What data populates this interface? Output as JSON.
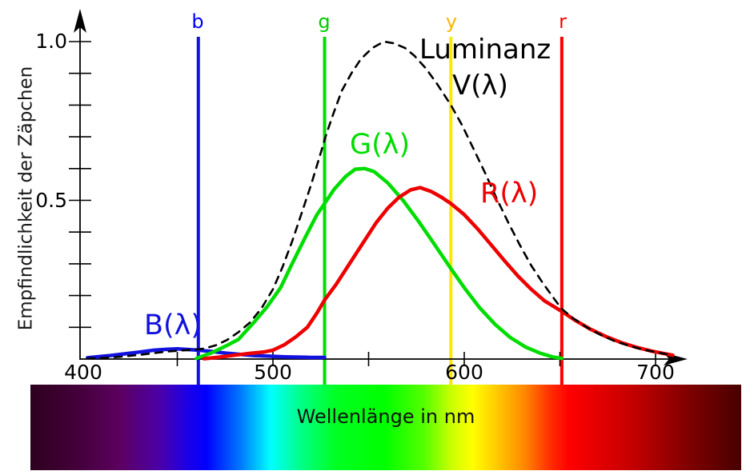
{
  "chart_data": {
    "type": "line",
    "title": "",
    "xlabel": "Wellenlänge in nm",
    "ylabel": "Empfindlichkeit der Zäpchen",
    "x_axis": {
      "unit": "nm",
      "min": 400,
      "max": 710,
      "minor_ticks": [
        450,
        500,
        550,
        600,
        650,
        700
      ],
      "tick_labels": [
        {
          "value": 400,
          "text": "400"
        },
        {
          "value": 500,
          "text": "500"
        },
        {
          "value": 600,
          "text": "600"
        },
        {
          "value": 700,
          "text": "700"
        }
      ]
    },
    "y_axis": {
      "min": 0,
      "max": 1.0,
      "tick_step": 0.1,
      "tick_labels": [
        {
          "value": 1.0,
          "text": "1.0"
        },
        {
          "value": 0.5,
          "text": "0.5"
        }
      ]
    },
    "grid": false,
    "series": [
      {
        "name": "blue-cone",
        "label": "B(λ)",
        "color": "#1212e0",
        "dashed": false,
        "peak_nm": 448,
        "peak_value": 0.032,
        "points": [
          [
            403,
            0.004
          ],
          [
            408,
            0.007
          ],
          [
            415,
            0.011
          ],
          [
            422,
            0.016
          ],
          [
            430,
            0.022
          ],
          [
            438,
            0.028
          ],
          [
            445,
            0.031
          ],
          [
            450,
            0.032
          ],
          [
            456,
            0.03
          ],
          [
            461,
            0.028
          ],
          [
            468,
            0.024
          ],
          [
            475,
            0.019
          ],
          [
            482,
            0.015
          ],
          [
            490,
            0.011
          ],
          [
            498,
            0.009
          ],
          [
            506,
            0.007
          ],
          [
            514,
            0.006
          ],
          [
            520,
            0.005
          ],
          [
            527,
            0.005
          ]
        ]
      },
      {
        "name": "green-cone",
        "label": "G(λ)",
        "color": "#00dd00",
        "dashed": false,
        "peak_nm": 543,
        "peak_value": 0.6,
        "points": [
          [
            460,
            0.002
          ],
          [
            468,
            0.02
          ],
          [
            475,
            0.04
          ],
          [
            482,
            0.062
          ],
          [
            490,
            0.115
          ],
          [
            497,
            0.165
          ],
          [
            504,
            0.225
          ],
          [
            510,
            0.3
          ],
          [
            517,
            0.385
          ],
          [
            523,
            0.455
          ],
          [
            527,
            0.49
          ],
          [
            532,
            0.535
          ],
          [
            538,
            0.575
          ],
          [
            543,
            0.598
          ],
          [
            548,
            0.6
          ],
          [
            553,
            0.59
          ],
          [
            560,
            0.555
          ],
          [
            568,
            0.5
          ],
          [
            576,
            0.435
          ],
          [
            584,
            0.365
          ],
          [
            593,
            0.285
          ],
          [
            600,
            0.225
          ],
          [
            608,
            0.162
          ],
          [
            616,
            0.11
          ],
          [
            624,
            0.068
          ],
          [
            632,
            0.038
          ],
          [
            640,
            0.018
          ],
          [
            646,
            0.007
          ],
          [
            651,
            0.002
          ]
        ]
      },
      {
        "name": "red-cone",
        "label": "R(λ)",
        "color": "#ee0000",
        "dashed": false,
        "peak_nm": 577,
        "peak_value": 0.54,
        "points": [
          [
            464,
            0.001
          ],
          [
            472,
            0.006
          ],
          [
            480,
            0.012
          ],
          [
            488,
            0.018
          ],
          [
            495,
            0.022
          ],
          [
            500,
            0.028
          ],
          [
            506,
            0.045
          ],
          [
            512,
            0.07
          ],
          [
            518,
            0.1
          ],
          [
            523,
            0.145
          ],
          [
            527,
            0.186
          ],
          [
            533,
            0.235
          ],
          [
            540,
            0.3
          ],
          [
            547,
            0.365
          ],
          [
            554,
            0.43
          ],
          [
            560,
            0.475
          ],
          [
            566,
            0.51
          ],
          [
            572,
            0.533
          ],
          [
            577,
            0.54
          ],
          [
            583,
            0.527
          ],
          [
            588,
            0.51
          ],
          [
            593,
            0.49
          ],
          [
            600,
            0.455
          ],
          [
            607,
            0.41
          ],
          [
            614,
            0.36
          ],
          [
            621,
            0.31
          ],
          [
            628,
            0.262
          ],
          [
            635,
            0.22
          ],
          [
            642,
            0.183
          ],
          [
            651,
            0.15
          ],
          [
            658,
            0.122
          ],
          [
            666,
            0.094
          ],
          [
            674,
            0.071
          ],
          [
            682,
            0.052
          ],
          [
            690,
            0.037
          ],
          [
            698,
            0.025
          ],
          [
            704,
            0.018
          ],
          [
            709,
            0.012
          ]
        ]
      },
      {
        "name": "luminance",
        "label_line1": "Luminanz",
        "label_line2": "V(λ)",
        "color": "#000000",
        "dashed": true,
        "peak_nm": 558,
        "peak_value": 1.0,
        "points": [
          [
            403,
            0.002
          ],
          [
            412,
            0.004
          ],
          [
            420,
            0.007
          ],
          [
            430,
            0.013
          ],
          [
            438,
            0.019
          ],
          [
            445,
            0.024
          ],
          [
            452,
            0.027
          ],
          [
            458,
            0.029
          ],
          [
            464,
            0.033
          ],
          [
            470,
            0.043
          ],
          [
            476,
            0.06
          ],
          [
            482,
            0.085
          ],
          [
            488,
            0.115
          ],
          [
            494,
            0.16
          ],
          [
            500,
            0.22
          ],
          [
            505,
            0.29
          ],
          [
            510,
            0.37
          ],
          [
            515,
            0.46
          ],
          [
            520,
            0.55
          ],
          [
            524,
            0.63
          ],
          [
            528,
            0.71
          ],
          [
            532,
            0.78
          ],
          [
            536,
            0.845
          ],
          [
            541,
            0.9
          ],
          [
            546,
            0.945
          ],
          [
            552,
            0.98
          ],
          [
            558,
            1.0
          ],
          [
            563,
            0.995
          ],
          [
            569,
            0.98
          ],
          [
            574,
            0.955
          ],
          [
            580,
            0.915
          ],
          [
            586,
            0.865
          ],
          [
            593,
            0.8
          ],
          [
            599,
            0.735
          ],
          [
            605,
            0.66
          ],
          [
            611,
            0.585
          ],
          [
            617,
            0.505
          ],
          [
            623,
            0.43
          ],
          [
            629,
            0.36
          ],
          [
            635,
            0.295
          ],
          [
            641,
            0.24
          ],
          [
            647,
            0.19
          ],
          [
            651,
            0.158
          ],
          [
            657,
            0.128
          ],
          [
            664,
            0.1
          ],
          [
            671,
            0.077
          ],
          [
            678,
            0.058
          ],
          [
            685,
            0.044
          ],
          [
            692,
            0.032
          ],
          [
            699,
            0.023
          ],
          [
            705,
            0.016
          ],
          [
            709,
            0.012
          ]
        ]
      }
    ],
    "markers": [
      {
        "label": "b",
        "wavelength_nm": 461,
        "color": "#1212e0",
        "label_color": "#0000ff"
      },
      {
        "label": "g",
        "wavelength_nm": 527,
        "color": "#00dd00",
        "label_color": "#00cc00"
      },
      {
        "label": "y",
        "wavelength_nm": 593,
        "color": "#ffe800",
        "label_color": "#ffb400"
      },
      {
        "label": "r",
        "wavelength_nm": 651,
        "color": "#ff0000",
        "label_color": "#ff0000"
      }
    ],
    "spectrum_bar": {
      "label": "Wellenlänge in nm",
      "stops": [
        {
          "pos": 0.0,
          "color": "#2e001e"
        },
        {
          "pos": 0.07,
          "color": "#45003c"
        },
        {
          "pos": 0.126,
          "color": "#5c0060"
        },
        {
          "pos": 0.182,
          "color": "#4b00a8"
        },
        {
          "pos": 0.222,
          "color": "#1b00e8"
        },
        {
          "pos": 0.248,
          "color": "#0000ff"
        },
        {
          "pos": 0.295,
          "color": "#0077ff"
        },
        {
          "pos": 0.338,
          "color": "#00ffff"
        },
        {
          "pos": 0.38,
          "color": "#00ff88"
        },
        {
          "pos": 0.43,
          "color": "#00ff22"
        },
        {
          "pos": 0.498,
          "color": "#00ff00"
        },
        {
          "pos": 0.554,
          "color": "#55ff00"
        },
        {
          "pos": 0.593,
          "color": "#ccff00"
        },
        {
          "pos": 0.622,
          "color": "#ffff00"
        },
        {
          "pos": 0.655,
          "color": "#ffcc00"
        },
        {
          "pos": 0.695,
          "color": "#ff8800"
        },
        {
          "pos": 0.729,
          "color": "#ff3300"
        },
        {
          "pos": 0.757,
          "color": "#ff0000"
        },
        {
          "pos": 0.847,
          "color": "#c40000"
        },
        {
          "pos": 0.926,
          "color": "#800000"
        },
        {
          "pos": 1.0,
          "color": "#470000"
        }
      ]
    }
  }
}
